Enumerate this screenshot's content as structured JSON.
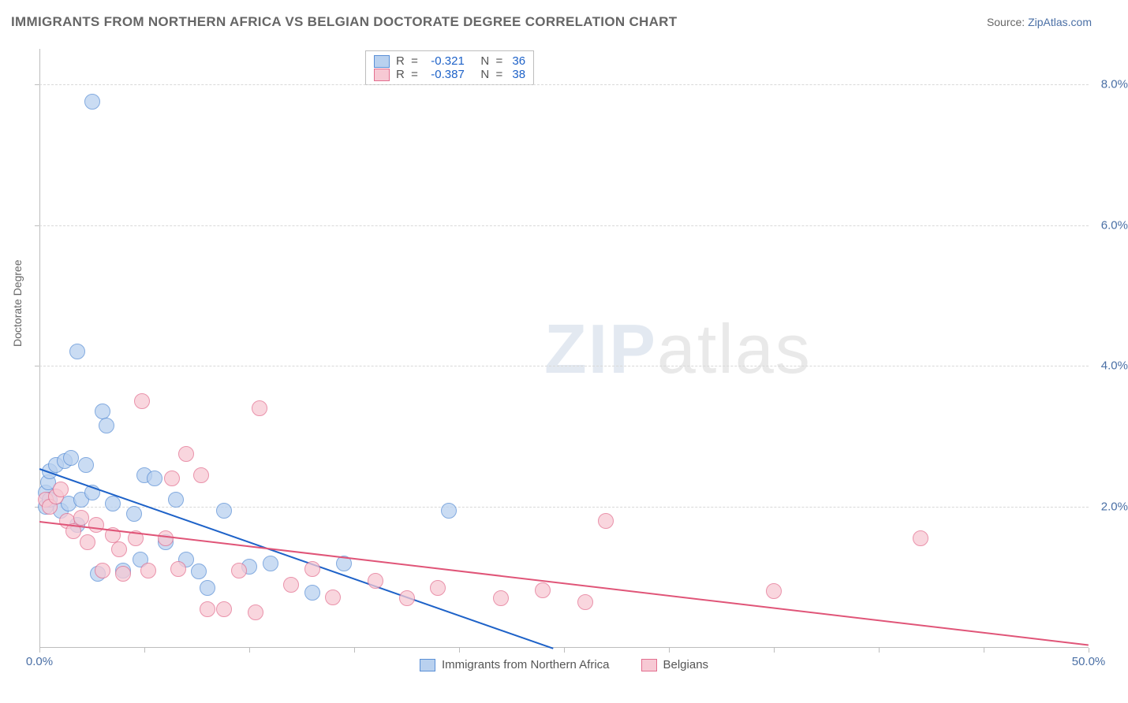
{
  "title": "IMMIGRANTS FROM NORTHERN AFRICA VS BELGIAN DOCTORATE DEGREE CORRELATION CHART",
  "source_prefix": "Source: ",
  "source_link": "ZipAtlas.com",
  "axis": {
    "y_title": "Doctorate Degree",
    "x_min": 0.0,
    "x_max": 50.0,
    "y_min": 0.0,
    "y_max": 8.5,
    "x_ticks": [
      0,
      5,
      10,
      15,
      20,
      25,
      30,
      35,
      40,
      45,
      50
    ],
    "y_gridlines": [
      2.0,
      4.0,
      6.0,
      8.0
    ],
    "x_labels": [
      {
        "v": 0.0,
        "t": "0.0%"
      },
      {
        "v": 50.0,
        "t": "50.0%"
      }
    ],
    "y_labels": [
      {
        "v": 2.0,
        "t": "2.0%"
      },
      {
        "v": 4.0,
        "t": "4.0%"
      },
      {
        "v": 6.0,
        "t": "6.0%"
      },
      {
        "v": 8.0,
        "t": "8.0%"
      }
    ]
  },
  "series": [
    {
      "name": "Immigrants from Northern Africa",
      "fill": "#b9d1ef",
      "stroke": "#5a8fd6",
      "marker_radius": 9,
      "R": "-0.321",
      "N": "36",
      "trend": {
        "x1": 0.0,
        "y1": 2.55,
        "x2": 24.5,
        "y2": 0.0,
        "color": "#1e62c8",
        "width": 2
      },
      "points": [
        [
          0.3,
          2.2
        ],
        [
          0.3,
          2.0
        ],
        [
          0.4,
          2.35
        ],
        [
          0.5,
          2.5
        ],
        [
          0.5,
          2.1
        ],
        [
          0.8,
          2.6
        ],
        [
          1.0,
          1.95
        ],
        [
          1.2,
          2.65
        ],
        [
          1.4,
          2.05
        ],
        [
          1.5,
          2.7
        ],
        [
          1.8,
          1.75
        ],
        [
          1.8,
          4.2
        ],
        [
          2.0,
          2.1
        ],
        [
          2.2,
          2.6
        ],
        [
          2.5,
          2.2
        ],
        [
          2.5,
          7.75
        ],
        [
          2.8,
          1.05
        ],
        [
          3.0,
          3.35
        ],
        [
          3.2,
          3.15
        ],
        [
          3.5,
          2.05
        ],
        [
          4.0,
          1.1
        ],
        [
          4.5,
          1.9
        ],
        [
          4.8,
          1.25
        ],
        [
          5.0,
          2.45
        ],
        [
          5.5,
          2.4
        ],
        [
          6.0,
          1.5
        ],
        [
          6.5,
          2.1
        ],
        [
          7.0,
          1.25
        ],
        [
          7.6,
          1.08
        ],
        [
          8.0,
          0.85
        ],
        [
          8.8,
          1.95
        ],
        [
          10.0,
          1.15
        ],
        [
          11.0,
          1.2
        ],
        [
          13.0,
          0.78
        ],
        [
          14.5,
          1.2
        ],
        [
          19.5,
          1.95
        ]
      ]
    },
    {
      "name": "Belgians",
      "fill": "#f7c9d4",
      "stroke": "#e36f8f",
      "marker_radius": 9,
      "R": "-0.387",
      "N": "38",
      "trend": {
        "x1": 0.0,
        "y1": 1.8,
        "x2": 50.0,
        "y2": 0.05,
        "color": "#e05578",
        "width": 2
      },
      "points": [
        [
          0.3,
          2.1
        ],
        [
          0.5,
          2.0
        ],
        [
          0.8,
          2.15
        ],
        [
          1.0,
          2.25
        ],
        [
          1.3,
          1.8
        ],
        [
          1.6,
          1.65
        ],
        [
          2.0,
          1.85
        ],
        [
          2.3,
          1.5
        ],
        [
          2.7,
          1.75
        ],
        [
          3.0,
          1.1
        ],
        [
          3.5,
          1.6
        ],
        [
          3.8,
          1.4
        ],
        [
          4.0,
          1.05
        ],
        [
          4.6,
          1.55
        ],
        [
          4.9,
          3.5
        ],
        [
          5.2,
          1.1
        ],
        [
          6.0,
          1.55
        ],
        [
          6.3,
          2.4
        ],
        [
          6.6,
          1.12
        ],
        [
          7.0,
          2.75
        ],
        [
          7.7,
          2.45
        ],
        [
          8.0,
          0.55
        ],
        [
          8.8,
          0.55
        ],
        [
          9.5,
          1.1
        ],
        [
          10.3,
          0.5
        ],
        [
          10.5,
          3.4
        ],
        [
          12.0,
          0.9
        ],
        [
          13.0,
          1.12
        ],
        [
          14.0,
          0.72
        ],
        [
          16.0,
          0.95
        ],
        [
          17.5,
          0.7
        ],
        [
          19.0,
          0.85
        ],
        [
          22.0,
          0.7
        ],
        [
          24.0,
          0.82
        ],
        [
          26.0,
          0.65
        ],
        [
          27.0,
          1.8
        ],
        [
          35.0,
          0.8
        ],
        [
          42.0,
          1.55
        ]
      ]
    }
  ],
  "legend_stats": {
    "R_label": "R  =",
    "N_label": "N  =",
    "value_color": "#1e62c8",
    "label_color": "#555555"
  },
  "watermark": {
    "part1": "ZIP",
    "part2": "atlas"
  },
  "colors": {
    "title": "#666666",
    "axis_text": "#4a6fa5"
  }
}
